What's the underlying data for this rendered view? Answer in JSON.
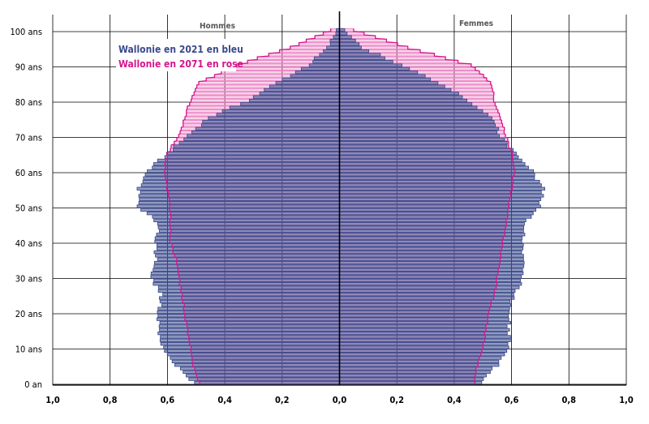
{
  "chart_data": {
    "type": "bar",
    "orientation": "horizontal-pyramid",
    "title": "",
    "xlim": [
      -1.0,
      1.0
    ],
    "ylim": [
      0,
      100
    ],
    "x_ticks": [
      -1.0,
      -0.8,
      -0.6,
      -0.4,
      -0.2,
      0,
      0.2,
      0.4,
      0.6,
      0.8,
      1.0
    ],
    "x_tick_labels": [
      "1,0",
      "0,8",
      "0,6",
      "0,4",
      "0,2",
      "0,0",
      "0,2",
      "0,4",
      "0,6",
      "0,8",
      "1,0"
    ],
    "y_ticks": [
      0,
      10,
      20,
      30,
      40,
      50,
      60,
      70,
      80,
      90,
      100
    ],
    "y_tick_labels": [
      "0 an",
      "10 ans",
      "20 ans",
      "30 ans",
      "40 ans",
      "50 ans",
      "60 ans",
      "70 ans",
      "80 ans",
      "90 ans",
      "100 ans"
    ],
    "headers": {
      "left": "Hommes",
      "right": "Femmes"
    },
    "grid": true,
    "legend": [
      "Wallonie en 2021 en bleu",
      "Wallonie en 2071 en rose"
    ],
    "colors": {
      "blue": "#3b4a8c",
      "pink": "#d6168c",
      "pink_light": "#ec82c4"
    },
    "ages_note": "age 0 to 100, one value per year",
    "series": [
      {
        "name": "Wallonie en 2021 en bleu",
        "anchors_age": [
          0,
          5,
          10,
          15,
          20,
          25,
          30,
          35,
          40,
          45,
          50,
          55,
          60,
          65,
          70,
          75,
          80,
          85,
          90,
          95,
          100
        ],
        "hommes": [
          0.51,
          0.57,
          0.62,
          0.63,
          0.63,
          0.62,
          0.66,
          0.64,
          0.64,
          0.63,
          0.7,
          0.7,
          0.67,
          0.6,
          0.53,
          0.46,
          0.32,
          0.22,
          0.11,
          0.04,
          0.01
        ],
        "femmes": [
          0.49,
          0.55,
          0.59,
          0.59,
          0.59,
          0.61,
          0.64,
          0.64,
          0.64,
          0.64,
          0.7,
          0.71,
          0.67,
          0.61,
          0.56,
          0.53,
          0.45,
          0.35,
          0.22,
          0.08,
          0.02
        ]
      },
      {
        "name": "Wallonie en 2071 en rose",
        "anchors_age": [
          0,
          5,
          10,
          15,
          20,
          25,
          30,
          35,
          40,
          45,
          50,
          55,
          60,
          65,
          70,
          75,
          80,
          85,
          90,
          95,
          100
        ],
        "hommes": [
          0.49,
          0.51,
          0.52,
          0.53,
          0.54,
          0.55,
          0.56,
          0.57,
          0.59,
          0.59,
          0.59,
          0.6,
          0.61,
          0.6,
          0.56,
          0.54,
          0.52,
          0.49,
          0.36,
          0.17,
          0.03
        ],
        "femmes": [
          0.47,
          0.48,
          0.5,
          0.51,
          0.52,
          0.54,
          0.55,
          0.56,
          0.57,
          0.58,
          0.59,
          0.6,
          0.61,
          0.6,
          0.58,
          0.56,
          0.54,
          0.53,
          0.46,
          0.24,
          0.05
        ]
      }
    ]
  }
}
